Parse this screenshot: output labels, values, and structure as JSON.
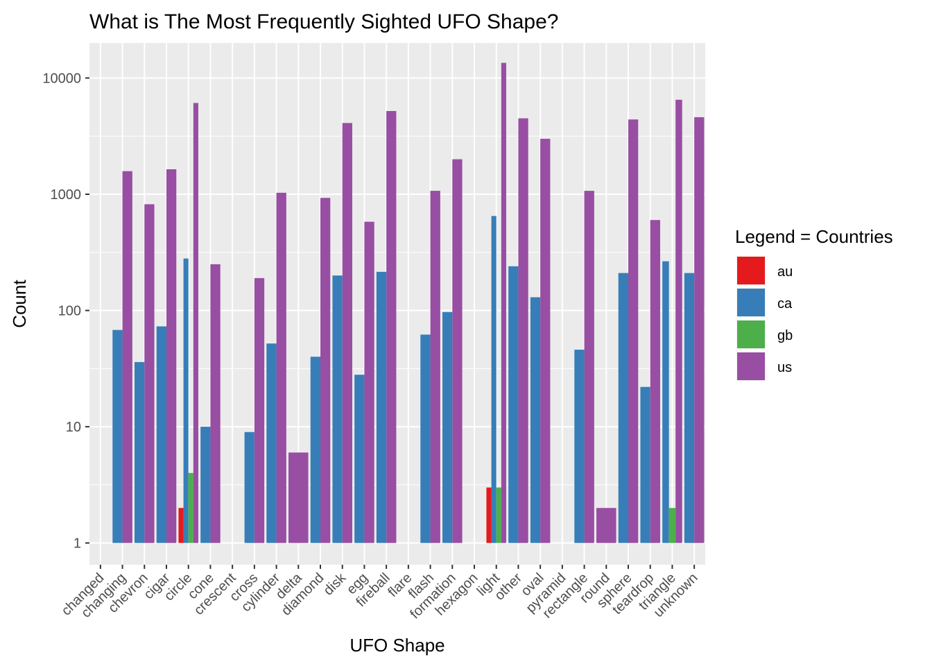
{
  "chart_data": {
    "type": "bar",
    "title": "What is The Most Frequently Sighted UFO Shape?",
    "xlabel": "UFO Shape",
    "ylabel": "Count",
    "y_scale": "log10",
    "ylim": [
      0.65,
      20000
    ],
    "y_ticks": [
      1,
      10,
      100,
      1000,
      10000
    ],
    "y_tick_labels": [
      "1",
      "10",
      "100",
      "1000",
      "10000"
    ],
    "grid": true,
    "legend": {
      "title": "Legend = Countries",
      "position": "right"
    },
    "categories": [
      "changed",
      "changing",
      "chevron",
      "cigar",
      "circle",
      "cone",
      "crescent",
      "cross",
      "cylinder",
      "delta",
      "diamond",
      "disk",
      "egg",
      "fireball",
      "flare",
      "flash",
      "formation",
      "hexagon",
      "light",
      "other",
      "oval",
      "pyramid",
      "rectangle",
      "round",
      "sphere",
      "teardrop",
      "triangle",
      "unknown"
    ],
    "series": [
      {
        "name": "au",
        "color": "#E41A1C",
        "values": [
          null,
          null,
          null,
          null,
          2,
          null,
          null,
          null,
          null,
          null,
          null,
          null,
          null,
          null,
          null,
          null,
          null,
          null,
          3,
          null,
          null,
          null,
          null,
          null,
          null,
          null,
          null,
          null
        ]
      },
      {
        "name": "ca",
        "color": "#377EB8",
        "values": [
          null,
          68,
          36,
          73,
          280,
          10,
          null,
          9,
          52,
          null,
          40,
          200,
          28,
          215,
          null,
          62,
          97,
          null,
          650,
          240,
          130,
          null,
          46,
          null,
          210,
          22,
          265,
          210
        ]
      },
      {
        "name": "gb",
        "color": "#4DAF4A",
        "values": [
          null,
          null,
          null,
          null,
          4,
          null,
          null,
          null,
          null,
          null,
          null,
          null,
          null,
          null,
          null,
          null,
          null,
          null,
          3,
          null,
          null,
          null,
          null,
          null,
          null,
          null,
          2,
          null
        ]
      },
      {
        "name": "us",
        "color": "#984EA3",
        "values": [
          1,
          1580,
          820,
          1640,
          6100,
          250,
          1,
          190,
          1030,
          6,
          930,
          4100,
          580,
          5200,
          1,
          1070,
          2000,
          1,
          13500,
          4500,
          3000,
          1,
          1070,
          2,
          4400,
          600,
          6500,
          4600
        ]
      }
    ]
  }
}
